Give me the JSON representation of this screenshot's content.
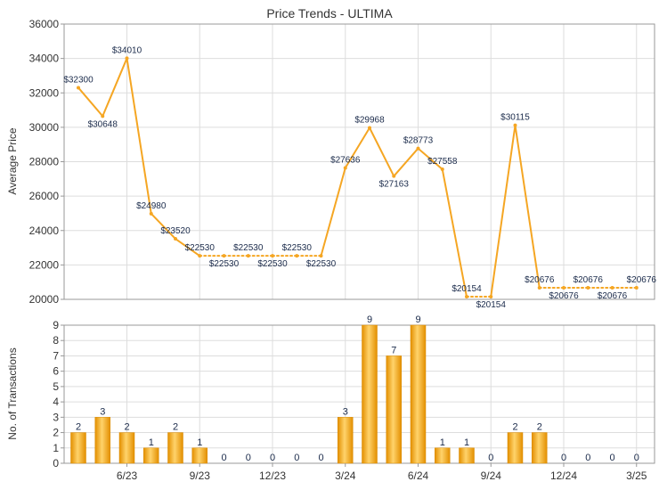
{
  "chart_data": [
    {
      "type": "line",
      "title": "Price Trends - ULTIMA",
      "ylabel": "Average Price",
      "ylim": [
        20000,
        36000
      ],
      "yticks": [
        20000,
        22000,
        24000,
        26000,
        28000,
        30000,
        32000,
        34000,
        36000
      ],
      "grid": true,
      "line_color": "#f5a623",
      "series": [
        {
          "values": [
            32300,
            30648,
            34010,
            24980,
            23520,
            22530,
            22530,
            22530,
            22530,
            22530,
            22530,
            27636,
            29968,
            27163,
            28773,
            27558,
            20154,
            20154,
            30115,
            20676,
            20676,
            20676,
            20676,
            20676
          ],
          "labels": [
            "$32300",
            "$30648",
            "$34010",
            "$24980",
            "$23520",
            "$22530",
            "$22530",
            "$22530",
            "$22530",
            "$22530",
            "$22530",
            "$27636",
            "$29968",
            "$27163",
            "$28773",
            "$27558",
            "$20154",
            "$20154",
            "$30115",
            "$20676",
            "$20676",
            "$20676",
            "$20676",
            "$20676"
          ],
          "dotted_segments": [
            [
              5,
              10
            ],
            [
              16,
              17
            ],
            [
              19,
              23
            ]
          ]
        }
      ]
    },
    {
      "type": "bar",
      "ylabel": "No. of Transactions",
      "ylim": [
        0,
        9
      ],
      "yticks": [
        0,
        1,
        2,
        3,
        4,
        5,
        6,
        7,
        8,
        9
      ],
      "grid": true,
      "bar_color": "#f5a623",
      "values": [
        2,
        3,
        2,
        1,
        2,
        1,
        0,
        0,
        0,
        0,
        0,
        3,
        9,
        7,
        9,
        1,
        1,
        0,
        2,
        2,
        0,
        0,
        0,
        0
      ],
      "x_tick_labels": [
        {
          "index": 2,
          "label": "6/23"
        },
        {
          "index": 5,
          "label": "9/23"
        },
        {
          "index": 8,
          "label": "12/23"
        },
        {
          "index": 11,
          "label": "3/24"
        },
        {
          "index": 14,
          "label": "6/24"
        },
        {
          "index": 17,
          "label": "9/24"
        },
        {
          "index": 20,
          "label": "12/24"
        },
        {
          "index": 23,
          "label": "3/25"
        }
      ]
    }
  ]
}
